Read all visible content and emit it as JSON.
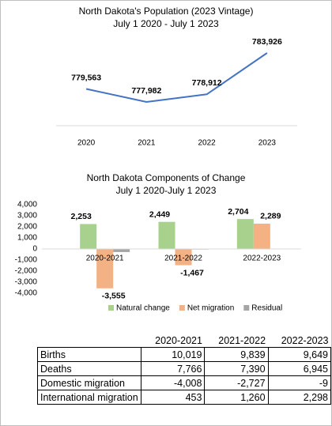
{
  "chart_data": [
    {
      "type": "line",
      "title": "North Dakota's Population (2023 Vintage)",
      "subtitle": "July 1 2020 - July 1 2023",
      "categories": [
        "2020",
        "2021",
        "2022",
        "2023"
      ],
      "values": [
        779563,
        777982,
        778912,
        783926
      ],
      "value_labels": [
        "779,563",
        "777,982",
        "778,912",
        "783,926"
      ],
      "color": "#4472c4"
    },
    {
      "type": "bar",
      "title": "North Dakota Components of Change",
      "subtitle": "July 1 2020-July 1 2023",
      "categories": [
        "2020-2021",
        "2021-2022",
        "2022-2023"
      ],
      "series": [
        {
          "name": "Natural change",
          "color": "#a9d18e",
          "values": [
            2253,
            2449,
            2704
          ],
          "value_labels": [
            "2,253",
            "2,449",
            "2,704"
          ]
        },
        {
          "name": "Net migration",
          "color": "#f4b183",
          "values": [
            -3555,
            -1467,
            2289
          ],
          "value_labels": [
            "-3,555",
            "-1,467",
            "2,289"
          ]
        },
        {
          "name": "Residual",
          "color": "#a5a5a5",
          "values": [
            -279,
            -52,
            21
          ]
        }
      ],
      "ylim": [
        -4000,
        4000
      ],
      "yticks": [
        {
          "value": -4000,
          "label": "-4,000"
        },
        {
          "value": -3000,
          "label": "-3,000"
        },
        {
          "value": -2000,
          "label": "-2,000"
        },
        {
          "value": -1000,
          "label": "-1,000"
        },
        0,
        {
          "value": 1000,
          "label": "1,000"
        },
        {
          "value": 2000,
          "label": "2,000"
        },
        {
          "value": 3000,
          "label": "3,000"
        },
        {
          "value": 4000,
          "label": "4,000"
        }
      ],
      "legend": "bottom"
    }
  ],
  "table": {
    "columns": [
      "2020-2021",
      "2021-2022",
      "2022-2023"
    ],
    "rows": [
      {
        "label": "Births",
        "cells": [
          "10,019",
          "9,839",
          "9,649"
        ]
      },
      {
        "label": "Deaths",
        "cells": [
          "7,766",
          "7,390",
          "6,945"
        ]
      },
      {
        "label": "Domestic migration",
        "cells": [
          "-4,008",
          "-2,727",
          "-9"
        ]
      },
      {
        "label": "International migration",
        "cells": [
          "453",
          "1,260",
          "2,298"
        ]
      }
    ]
  }
}
